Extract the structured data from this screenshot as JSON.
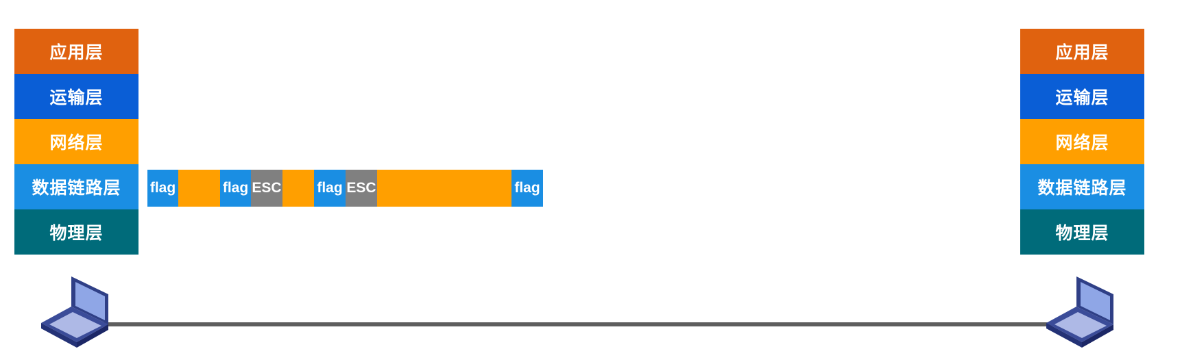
{
  "layers": [
    {
      "label": "应用层",
      "color": "#e0620f"
    },
    {
      "label": "运输层",
      "color": "#0a5ed6"
    },
    {
      "label": "网络层",
      "color": "#ff9f00"
    },
    {
      "label": "数据链路层",
      "color": "#1a8ee3"
    },
    {
      "label": "物理层",
      "color": "#006b7a"
    }
  ],
  "frame": {
    "segments": [
      {
        "label": "flag",
        "kind": "flag"
      },
      {
        "label": "",
        "kind": "data"
      },
      {
        "label": "flag",
        "kind": "flag"
      },
      {
        "label": "ESC",
        "kind": "esc"
      },
      {
        "label": "",
        "kind": "data"
      },
      {
        "label": "flag",
        "kind": "flag"
      },
      {
        "label": "ESC",
        "kind": "esc"
      },
      {
        "label": "",
        "kind": "data"
      },
      {
        "label": "flag",
        "kind": "flag"
      }
    ],
    "colors": {
      "flag": "#1a8ee3",
      "esc": "#808080",
      "data": "#ff9f00"
    }
  },
  "link_color": "#5e5e5e",
  "icons": {
    "host_left": "laptop-icon",
    "host_right": "laptop-icon"
  }
}
